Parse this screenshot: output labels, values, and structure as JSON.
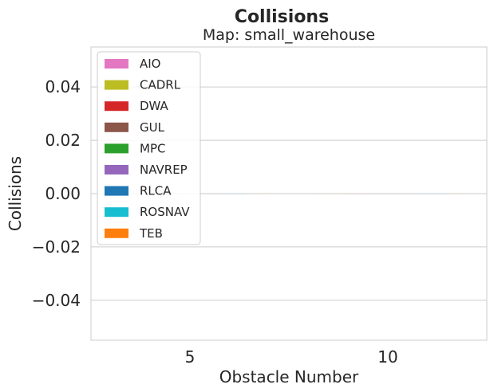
{
  "chart_data": {
    "type": "bar",
    "title": "Collisions",
    "subtitle": "Map: small_warehouse",
    "xlabel": "Obstacle Number",
    "ylabel": "Collisions",
    "categories": [
      "5",
      "10"
    ],
    "ylim": [
      -0.055,
      0.055
    ],
    "yticks": [
      0.04,
      0.02,
      0.0,
      -0.02,
      -0.04
    ],
    "ytick_labels": [
      "0.04",
      "0.02",
      "0.00",
      "−0.02",
      "−0.04"
    ],
    "grid": true,
    "legend_position": "top-left",
    "series": [
      {
        "name": "AIO",
        "color": "#e377c2",
        "values": [
          0,
          0
        ]
      },
      {
        "name": "CADRL",
        "color": "#bcbd22",
        "values": [
          0,
          0
        ]
      },
      {
        "name": "DWA",
        "color": "#d62728",
        "values": [
          0,
          0
        ]
      },
      {
        "name": "GUL",
        "color": "#8c564b",
        "values": [
          0,
          0
        ]
      },
      {
        "name": "MPC",
        "color": "#2ca02c",
        "values": [
          0,
          0
        ]
      },
      {
        "name": "NAVREP",
        "color": "#9467bd",
        "values": [
          0,
          0
        ]
      },
      {
        "name": "RLCA",
        "color": "#1f77b4",
        "values": [
          0,
          0
        ]
      },
      {
        "name": "ROSNAV",
        "color": "#17becf",
        "values": [
          0,
          0
        ]
      },
      {
        "name": "TEB",
        "color": "#ff7f0e",
        "values": [
          0,
          0
        ]
      }
    ]
  }
}
